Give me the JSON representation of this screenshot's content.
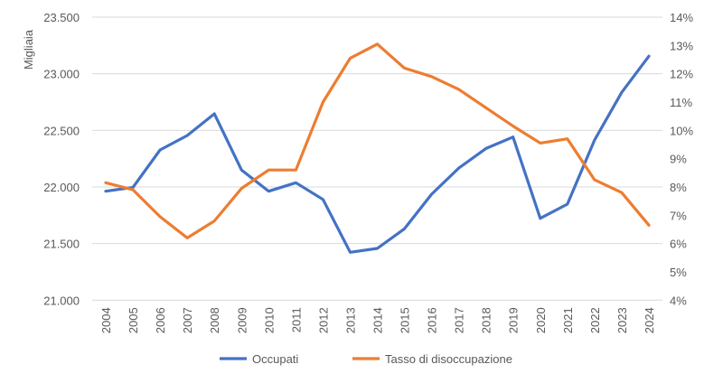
{
  "chart_data": {
    "type": "line",
    "ylabel": "Migliaia",
    "categories": [
      "2004",
      "2005",
      "2006",
      "2007",
      "2008",
      "2009",
      "2010",
      "2011",
      "2012",
      "2013",
      "2014",
      "2015",
      "2016",
      "2017",
      "2018",
      "2019",
      "2020",
      "2021",
      "2022",
      "2023",
      "2024"
    ],
    "left_axis": {
      "min": 21000,
      "max": 23500,
      "step": 500,
      "ticks": [
        "21.000",
        "21.500",
        "22.000",
        "22.500",
        "23.000",
        "23.500"
      ]
    },
    "right_axis": {
      "min": 4,
      "max": 14,
      "step": 1,
      "ticks": [
        "4%",
        "5%",
        "6%",
        "7%",
        "8%",
        "9%",
        "10%",
        "11%",
        "12%",
        "13%",
        "14%"
      ]
    },
    "grid": true,
    "legend_position": "bottom",
    "series": [
      {
        "name": "Occupati",
        "axis": "left",
        "color": "#4472C4",
        "values": [
          21962,
          21997,
          22327,
          22455,
          22646,
          22149,
          21962,
          22037,
          21890,
          21423,
          21457,
          21630,
          21936,
          22167,
          22340,
          22441,
          21723,
          21848,
          22415,
          22835,
          23155
        ]
      },
      {
        "name": "Tasso di disoccupazione",
        "axis": "right",
        "color": "#ED7D31",
        "values": [
          8.15,
          7.9,
          6.95,
          6.2,
          6.8,
          7.95,
          8.6,
          8.6,
          11.0,
          12.55,
          13.05,
          12.2,
          11.9,
          11.45,
          10.8,
          10.15,
          9.55,
          9.7,
          8.25,
          7.8,
          6.65
        ]
      }
    ]
  }
}
